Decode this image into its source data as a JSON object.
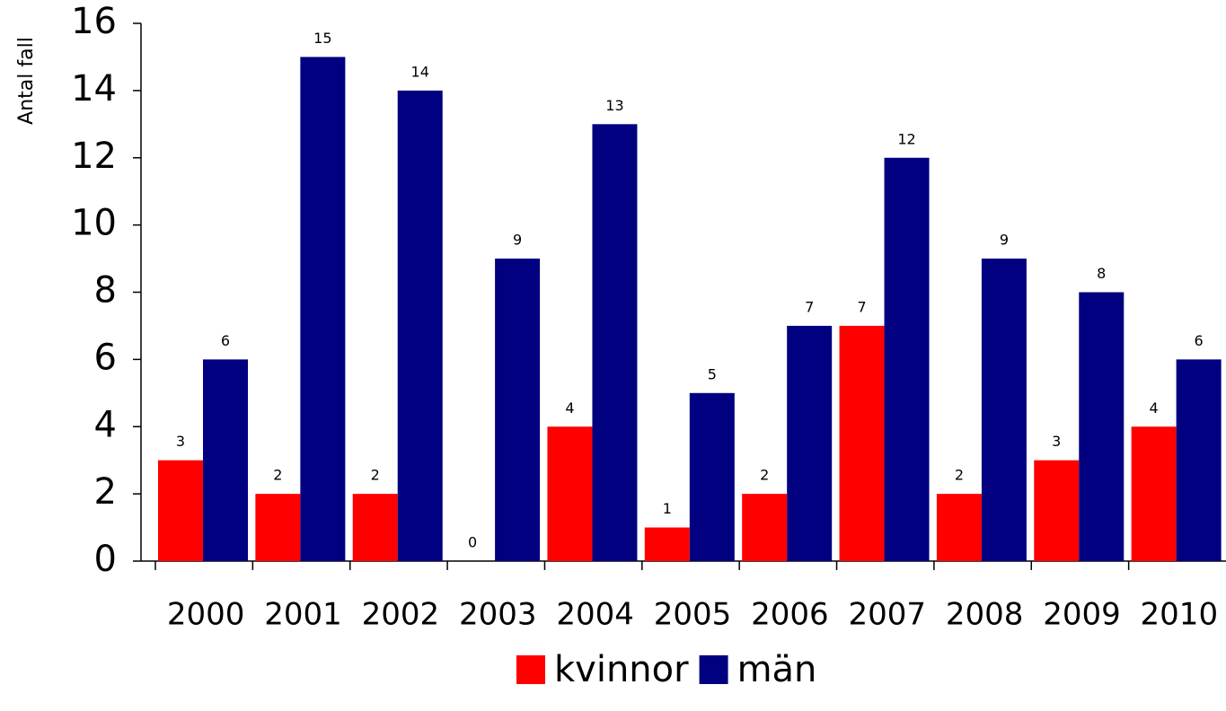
{
  "chart_data": {
    "type": "bar",
    "ylabel": "Antal fall",
    "categories": [
      "2000",
      "2001",
      "2002",
      "2003",
      "2004",
      "2005",
      "2006",
      "2007",
      "2008",
      "2009",
      "2010"
    ],
    "series": [
      {
        "name": "kvinnor",
        "color": "#ff0000",
        "values": [
          3,
          2,
          2,
          0,
          4,
          1,
          2,
          7,
          2,
          3,
          4
        ]
      },
      {
        "name": "män",
        "color": "#000080",
        "values": [
          6,
          15,
          14,
          9,
          13,
          5,
          7,
          12,
          9,
          8,
          6
        ]
      }
    ],
    "ylim": [
      0,
      16
    ],
    "yticks": [
      0,
      2,
      4,
      6,
      8,
      10,
      12,
      14,
      16
    ],
    "legend": "bottom"
  }
}
